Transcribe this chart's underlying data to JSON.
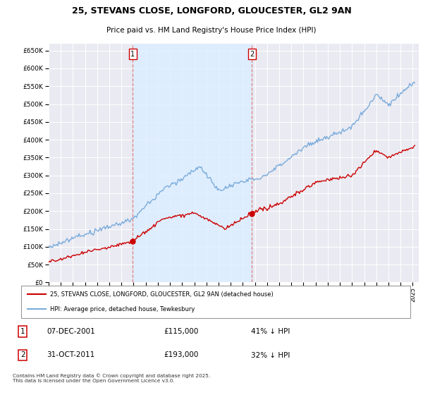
{
  "title1": "25, STEVANS CLOSE, LONGFORD, GLOUCESTER, GL2 9AN",
  "title2": "Price paid vs. HM Land Registry's House Price Index (HPI)",
  "legend_line1": "25, STEVANS CLOSE, LONGFORD, GLOUCESTER, GL2 9AN (detached house)",
  "legend_line2": "HPI: Average price, detached house, Tewkesbury",
  "sale1_date": "07-DEC-2001",
  "sale1_price": 115000,
  "sale1_label": "41% ↓ HPI",
  "sale2_date": "31-OCT-2011",
  "sale2_price": 193000,
  "sale2_label": "32% ↓ HPI",
  "footer": "Contains HM Land Registry data © Crown copyright and database right 2025.\nThis data is licensed under the Open Government Licence v3.0.",
  "hpi_color": "#7aacdc",
  "price_color": "#cc0000",
  "vline_color": "#e08080",
  "vline_box_color": "#cc0000",
  "shade_color": "#ddeeff",
  "background_plot": "#eaeaf2",
  "ylim": [
    0,
    670000
  ],
  "yticks": [
    0,
    50000,
    100000,
    150000,
    200000,
    250000,
    300000,
    350000,
    400000,
    450000,
    500000,
    550000,
    600000,
    650000
  ],
  "sale1_x": 2001.9167,
  "sale2_x": 2011.75
}
